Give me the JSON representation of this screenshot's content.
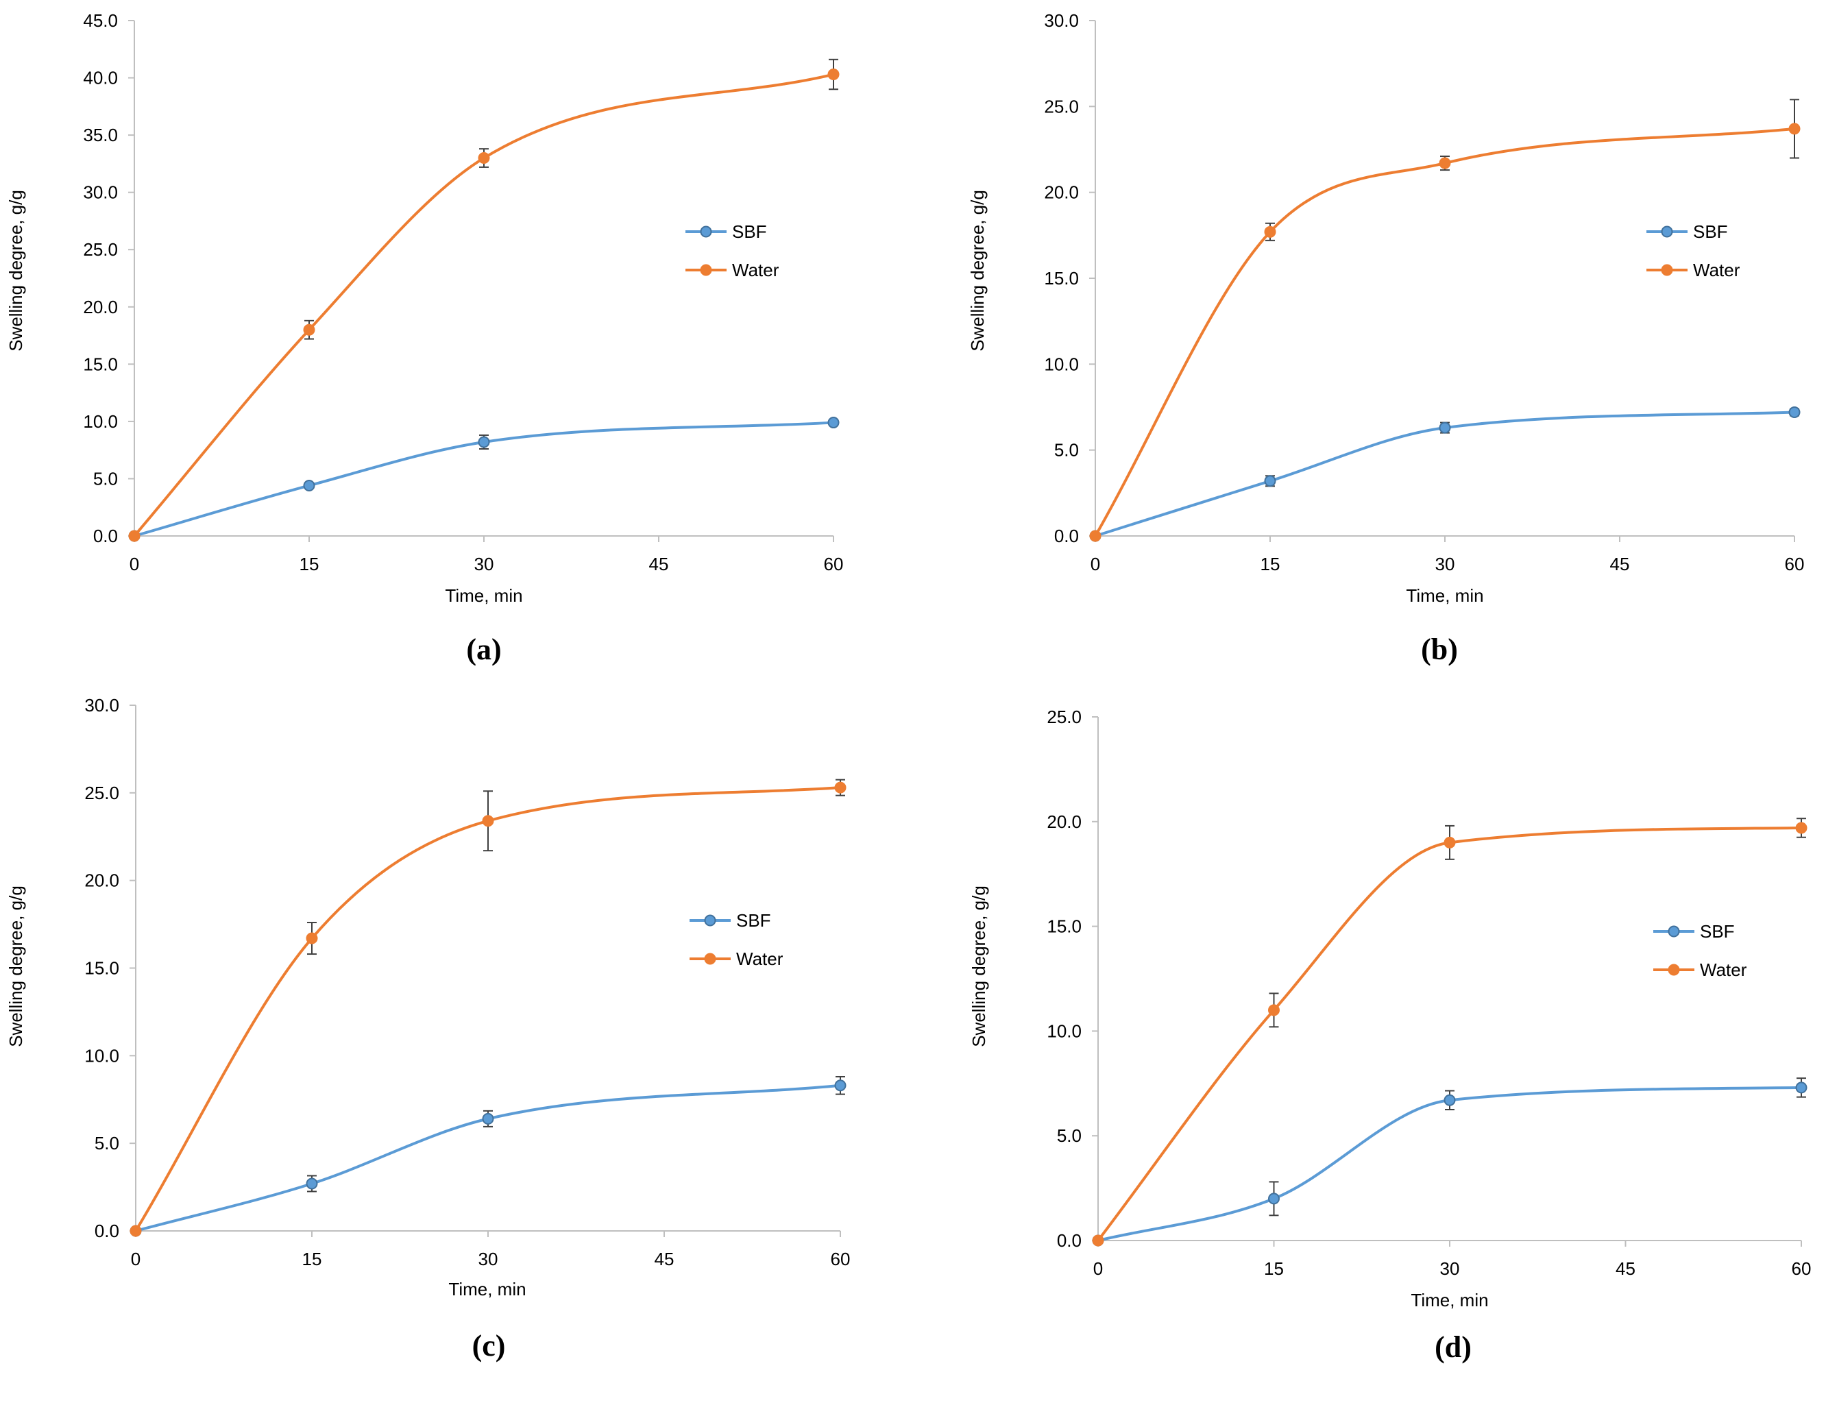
{
  "figure": {
    "colors": {
      "sbf": "#5b9bd5",
      "sbf_stroke": "#41719c",
      "water": "#ed7d31",
      "axis": "#bfbfbf",
      "error_bar": "#404040"
    },
    "panels": [
      {
        "label": "(a)"
      },
      {
        "label": "(b)"
      },
      {
        "label": "(c)"
      },
      {
        "label": "(d)"
      }
    ]
  },
  "chart_data": [
    {
      "type": "line",
      "panel": "(a)",
      "xlabel": "Time, min",
      "ylabel": "Swelling degree, g/g",
      "xlim": [
        0,
        60
      ],
      "ylim": [
        0,
        45
      ],
      "x_ticks": [
        "0",
        "15",
        "30",
        "45",
        "60"
      ],
      "y_ticks": [
        "0.0",
        "5.0",
        "10.0",
        "15.0",
        "20.0",
        "25.0",
        "30.0",
        "35.0",
        "40.0",
        "45.0"
      ],
      "x": [
        0,
        15,
        30,
        60
      ],
      "legend_position": "right-middle",
      "series": [
        {
          "name": "SBF",
          "values": [
            0,
            4.4,
            8.2,
            9.9
          ],
          "errors": [
            0,
            0.2,
            0.6,
            0.2
          ]
        },
        {
          "name": "Water",
          "values": [
            0,
            18.0,
            33.0,
            40.3
          ],
          "errors": [
            0,
            0.8,
            0.8,
            1.3
          ]
        }
      ]
    },
    {
      "type": "line",
      "panel": "(b)",
      "xlabel": "Time, min",
      "ylabel": "Swelling degree, g/g",
      "xlim": [
        0,
        60
      ],
      "ylim": [
        0,
        30
      ],
      "x_ticks": [
        "0",
        "15",
        "30",
        "45",
        "60"
      ],
      "y_ticks": [
        "0.0",
        "5.0",
        "10.0",
        "15.0",
        "20.0",
        "25.0",
        "30.0"
      ],
      "x": [
        0,
        15,
        30,
        60
      ],
      "legend_position": "right-middle",
      "series": [
        {
          "name": "SBF",
          "values": [
            0,
            3.2,
            6.3,
            7.2
          ],
          "errors": [
            0,
            0.3,
            0.3,
            0.2
          ]
        },
        {
          "name": "Water",
          "values": [
            0,
            17.7,
            21.7,
            23.7
          ],
          "errors": [
            0,
            0.5,
            0.4,
            1.7
          ]
        }
      ]
    },
    {
      "type": "line",
      "panel": "(c)",
      "xlabel": "Time, min",
      "ylabel": "Swelling degree, g/g",
      "xlim": [
        0,
        60
      ],
      "ylim": [
        0,
        30
      ],
      "x_ticks": [
        "0",
        "15",
        "30",
        "45",
        "60"
      ],
      "y_ticks": [
        "0.0",
        "5.0",
        "10.0",
        "15.0",
        "20.0",
        "25.0",
        "30.0"
      ],
      "x": [
        0,
        15,
        30,
        60
      ],
      "legend_position": "right-middle",
      "series": [
        {
          "name": "SBF",
          "values": [
            0,
            2.7,
            6.4,
            8.3
          ],
          "errors": [
            0,
            0.45,
            0.45,
            0.5
          ]
        },
        {
          "name": "Water",
          "values": [
            0,
            16.7,
            23.4,
            25.3
          ],
          "errors": [
            0,
            0.9,
            1.7,
            0.45
          ]
        }
      ]
    },
    {
      "type": "line",
      "panel": "(d)",
      "xlabel": "Time, min",
      "ylabel": "Swelling degree, g/g",
      "xlim": [
        0,
        60
      ],
      "ylim": [
        0,
        25
      ],
      "x_ticks": [
        "0",
        "15",
        "30",
        "45",
        "60"
      ],
      "y_ticks": [
        "0.0",
        "5.0",
        "10.0",
        "15.0",
        "20.0",
        "25.0"
      ],
      "x": [
        0,
        15,
        30,
        60
      ],
      "legend_position": "right-middle",
      "series": [
        {
          "name": "SBF",
          "values": [
            0,
            2.0,
            6.7,
            7.3
          ],
          "errors": [
            0,
            0.8,
            0.45,
            0.45
          ]
        },
        {
          "name": "Water",
          "values": [
            0,
            11.0,
            19.0,
            19.7
          ],
          "errors": [
            0,
            0.8,
            0.8,
            0.45
          ]
        }
      ]
    }
  ]
}
